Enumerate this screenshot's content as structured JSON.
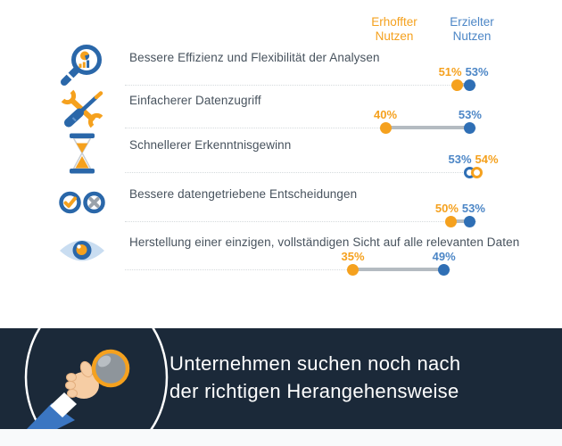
{
  "chart_data": {
    "type": "dumbbell",
    "categories": [
      "Bessere Effizienz und Flexibilität der Analysen",
      "Einfacherer Datenzugriff",
      "Schnellerer Erkenntnisgewinn",
      "Bessere datengetriebene Entscheidungen",
      "Herstellung einer einzigen, vollständigen Sicht auf alle relevanten Daten"
    ],
    "series": [
      {
        "name": "Erhoffter Nutzen",
        "values": [
          51,
          40,
          54,
          50,
          35
        ],
        "color": "#F5A11E"
      },
      {
        "name": "Erzielter Nutzen",
        "values": [
          53,
          53,
          53,
          53,
          49
        ],
        "color": "#2F6FB5"
      }
    ],
    "unit": "%",
    "xlim": [
      0,
      55
    ],
    "grid": false,
    "legend_position": "top-right",
    "value_labels": true,
    "marker_style_by_row": [
      "filled",
      "filled",
      "ring",
      "filled",
      "filled"
    ]
  },
  "icons": [
    "magnifier-analytics-icon",
    "tools-icon",
    "hourglass-icon",
    "check-cross-icon",
    "eye-icon"
  ],
  "banner": {
    "line1": "Unternehmen suchen noch nach",
    "line2": "der richtigen Herangehensweise"
  },
  "colors": {
    "expected": "#F5A11E",
    "achieved_dot": "#2F6FB5",
    "achieved_text": "#4C86C6",
    "row_text": "#47525D",
    "track": "#D5DADD",
    "connector": "#B4BBC1",
    "icon_blue": "#2A67A9",
    "icon_gray": "#9AA2AA",
    "banner_bg": "#1B2939",
    "banner_text": "#FFFFFF",
    "footer_strip": "#F8FAFB",
    "background": "#FFFFFF"
  }
}
